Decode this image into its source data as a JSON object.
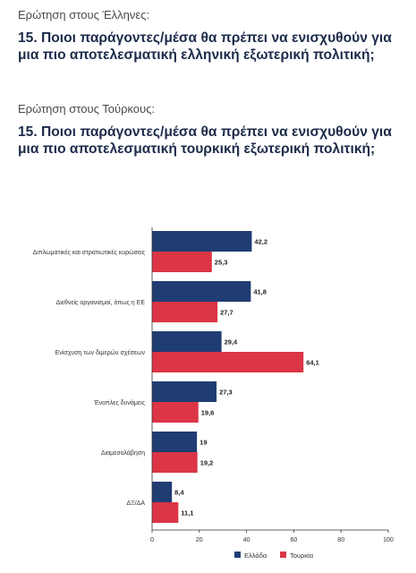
{
  "header": {
    "intro_greece": "Ερώτηση στους Έλληνες:",
    "title_greece": "15. Ποιοι παράγοντες/μέσα θα πρέπει να ενισχυθούν για μια πιο αποτελεσματική ελληνική εξωτερική πολιτική;",
    "intro_turkey": "Ερώτηση στους Τούρκους:",
    "title_turkey": "15. Ποιοι παράγοντες/μέσα θα πρέπει να ενισχυθούν για μια πιο αποτελεσματική τουρκική εξωτερική πολιτική;"
  },
  "chart_data": {
    "type": "bar",
    "orientation": "horizontal",
    "categories": [
      "Διπλωματικές και στρατιωτικές κυρώσεις",
      "Διεθνείς οργανισμοί, όπως η ΕΕ",
      "Ενίσχυση των διμερών σχέσεων",
      "Ένοπλες δυνάμεις",
      "Διαμεσολάβηση",
      "ΔΞ/ΔΑ"
    ],
    "series": [
      {
        "name": "Ελλάδα",
        "color": "#1f3d73",
        "values": [
          42.2,
          41.8,
          29.4,
          27.3,
          19,
          8.4
        ],
        "labels": [
          "42,2",
          "41,8",
          "29,4",
          "27,3",
          "19",
          "8,4"
        ]
      },
      {
        "name": "Τουρκία",
        "color": "#dc3545",
        "values": [
          25.3,
          27.7,
          64.1,
          19.6,
          19.2,
          11.1
        ],
        "labels": [
          "25,3",
          "27,7",
          "64,1",
          "19,6",
          "19,2",
          "11,1"
        ]
      }
    ],
    "xlim": [
      0,
      100
    ],
    "xticks": [
      "0",
      "20",
      "40",
      "60",
      "80",
      "100"
    ],
    "grid": false,
    "legend": "bottom-right",
    "xlabel": "",
    "ylabel": ""
  }
}
